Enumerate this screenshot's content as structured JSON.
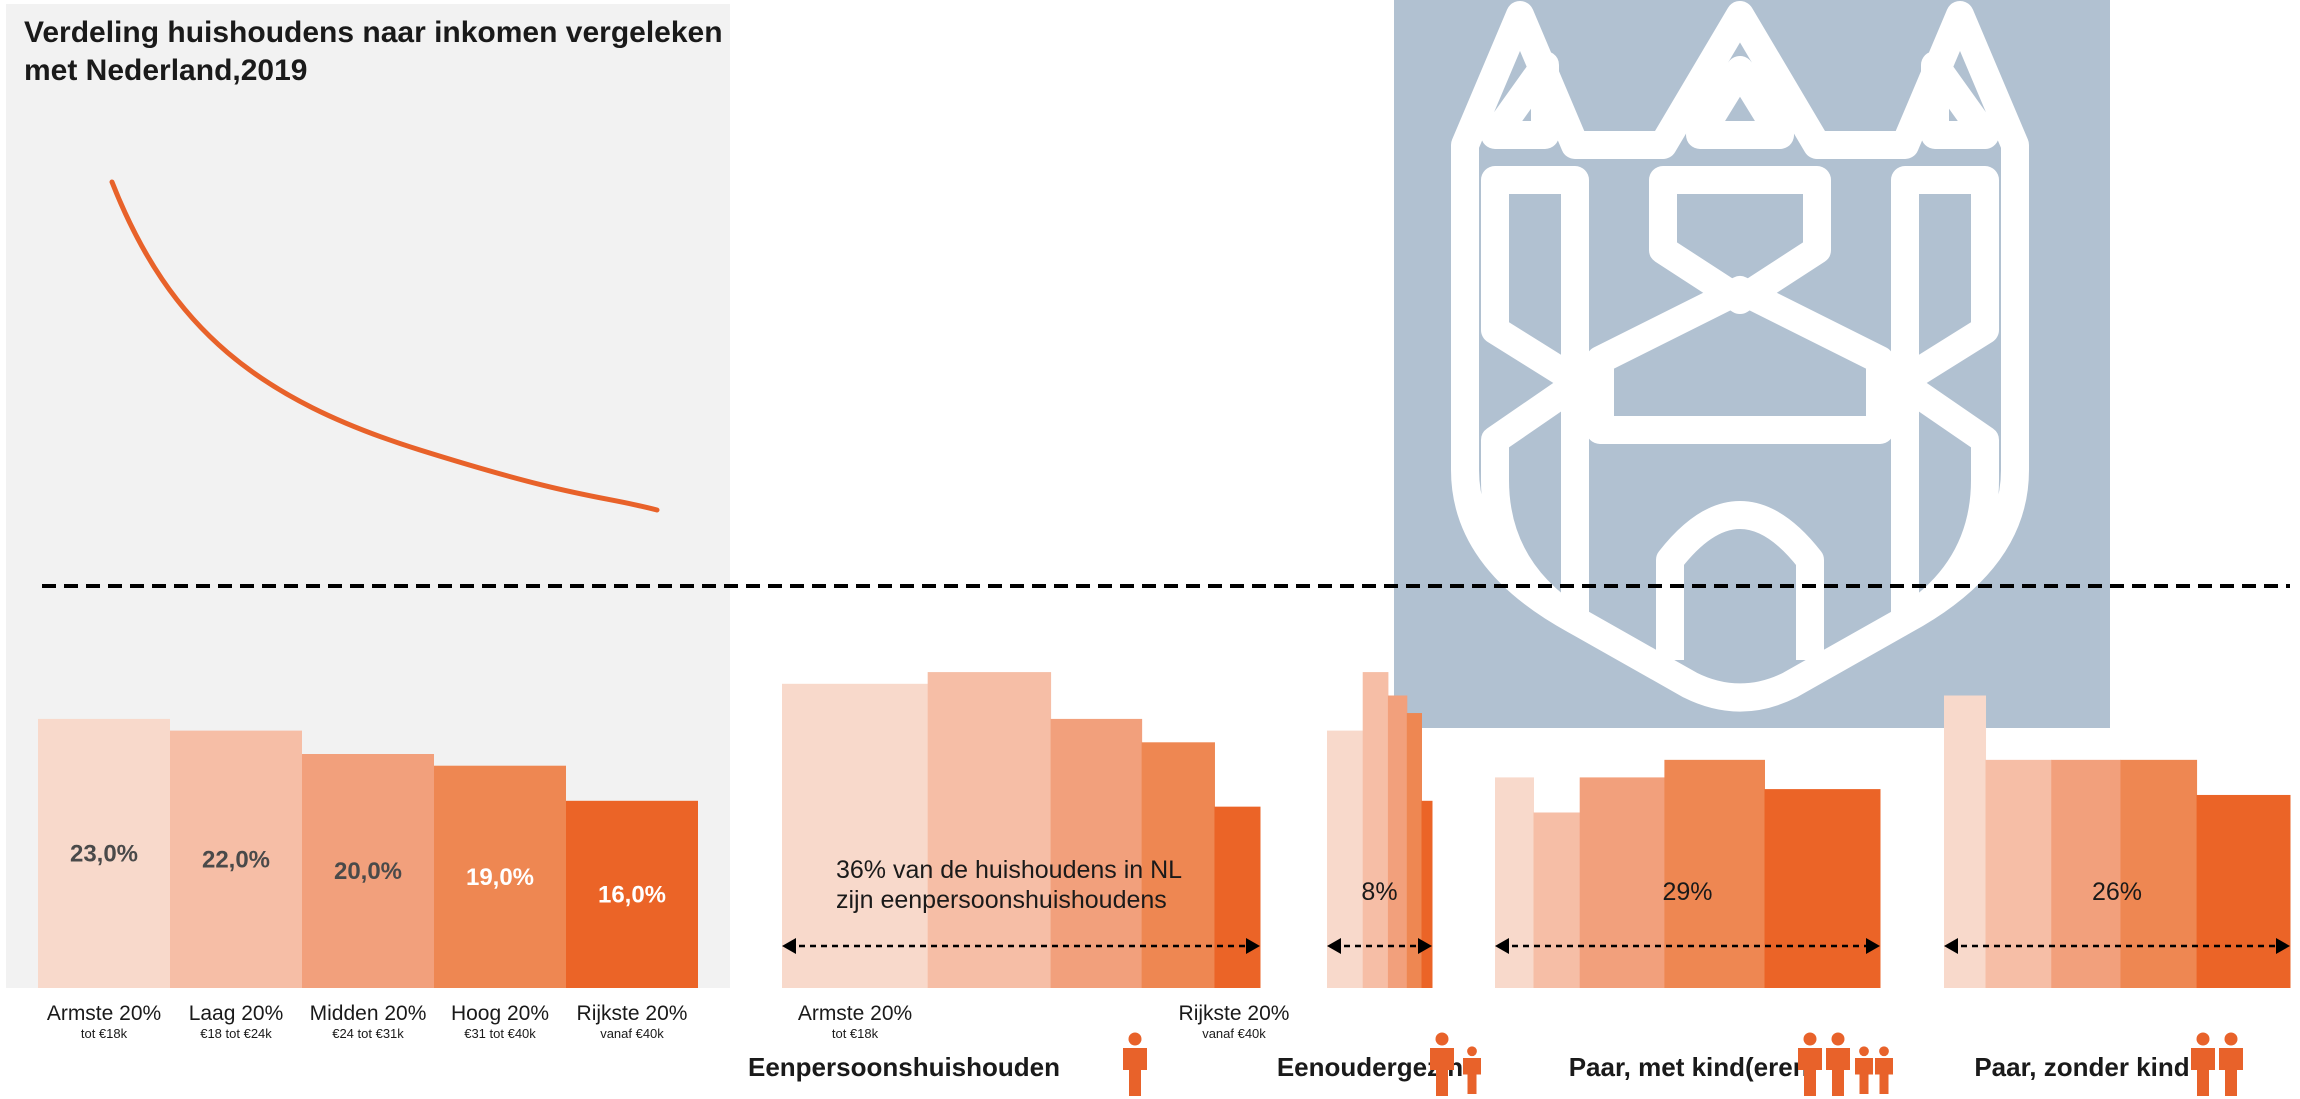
{
  "title": "Verdeling huishoudens naar inkomen vergeleken met Nederland,2019",
  "colors": {
    "panel": "#f2f2f2",
    "shield": "#b1c1d1",
    "shield_lines": "#ffffff",
    "curve": "#e8622a",
    "reference_line": "#000000",
    "shades": [
      "#f8d9cb",
      "#f6bea6",
      "#f2a07c",
      "#ee8752",
      "#eb6427"
    ]
  },
  "chart_data": [
    {
      "type": "bar",
      "title": "Verdeling huishoudens naar inkomen vergeleken met Nederland,2019",
      "categories": [
        "Armste 20%",
        "Laag 20%",
        "Midden 20%",
        "Hoog 20%",
        "Rijkste 20%"
      ],
      "category_sublabels": [
        "tot €18k",
        "€18 tot €24k",
        "€24 tot €31k",
        "€31 tot €40k",
        "vanaf €40k"
      ],
      "values": [
        23.0,
        22.0,
        20.0,
        19.0,
        16.0
      ],
      "value_labels": [
        "23,0%",
        "22,0%",
        "20,0%",
        "19,0%",
        "16,0%"
      ],
      "reference_line": 20.0,
      "ylim": [
        0,
        50
      ],
      "grid": false,
      "xlabel": "",
      "ylabel": ""
    },
    {
      "type": "bar",
      "title": "Eenpersoonshuishouden",
      "icon": "person-single-icon",
      "categories": [
        "Armste 20%",
        "Laag 20%",
        "Midden 20%",
        "Hoog 20%",
        "Rijkste 20%"
      ],
      "values": [
        26.0,
        27.0,
        23.0,
        21.0,
        15.5
      ],
      "width_share": [
        32,
        27,
        20,
        16,
        10
      ],
      "annotation": [
        "36% van de huishoudens in NL",
        "zijn eenpersoonshuishoudens"
      ],
      "edge_labels": [
        {
          "label": "Armste 20%",
          "sub": "tot €18k"
        },
        {
          "label": "Rijkste 20%",
          "sub": "vanaf €40k"
        }
      ],
      "ylim": [
        0,
        50
      ]
    },
    {
      "type": "bar",
      "title": "Eenoudergezin",
      "icon": "parent-child-icon",
      "categories": [
        "Armste 20%",
        "Laag 20%",
        "Midden 20%",
        "Hoog 20%",
        "Rijkste 20%"
      ],
      "values": [
        22.0,
        27.0,
        25.0,
        23.5,
        16.0
      ],
      "width_share": [
        34,
        24,
        18,
        14,
        10
      ],
      "annotation": [
        "8%"
      ],
      "ylim": [
        0,
        50
      ]
    },
    {
      "type": "bar",
      "title": "Paar, met kind(eren)",
      "icon": "family-icon",
      "categories": [
        "Armste 20%",
        "Laag 20%",
        "Midden 20%",
        "Hoog 20%",
        "Rijkste 20%"
      ],
      "values": [
        18.0,
        15.0,
        18.0,
        19.5,
        17.0
      ],
      "width_share": [
        10,
        12,
        22,
        26,
        30
      ],
      "annotation": [
        "29%"
      ],
      "ylim": [
        0,
        50
      ]
    },
    {
      "type": "bar",
      "title": "Paar, zonder kind",
      "icon": "couple-icon",
      "categories": [
        "Armste 20%",
        "Laag 20%",
        "Midden 20%",
        "Hoog 20%",
        "Rijkste 20%"
      ],
      "values": [
        25.0,
        19.5,
        19.5,
        19.5,
        16.5
      ],
      "width_share": [
        12,
        19,
        20,
        22,
        27
      ],
      "annotation": [
        "26%"
      ],
      "ylim": [
        0,
        50
      ]
    }
  ]
}
